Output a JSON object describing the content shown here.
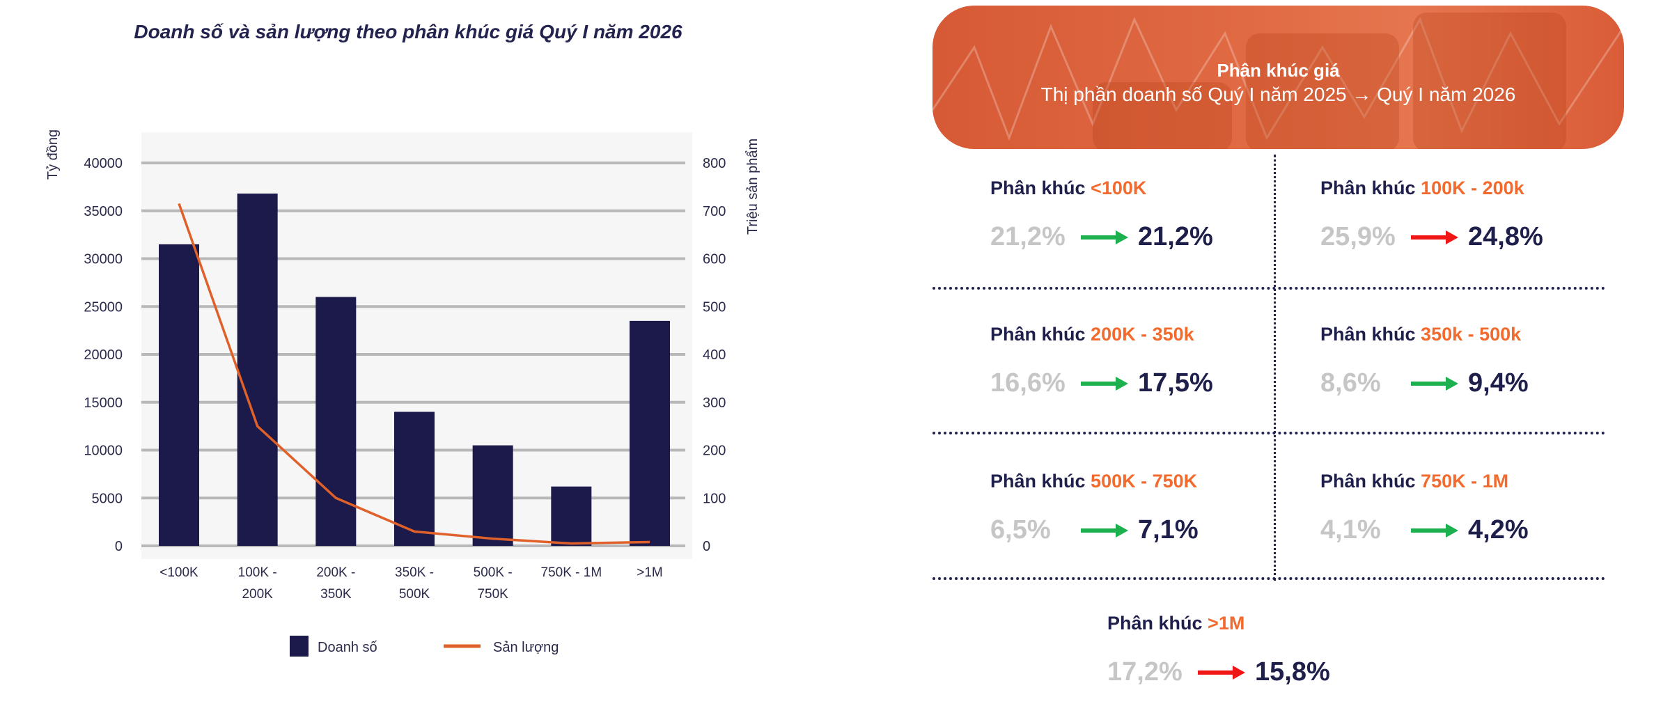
{
  "chart_data": {
    "type": "bar+line",
    "title": "Doanh số và sản lượng theo phân khúc giá Quý I năm 2026",
    "categories": [
      [
        "<100K"
      ],
      [
        "100K -",
        "200K"
      ],
      [
        "200K -",
        "350K"
      ],
      [
        "350K -",
        "500K"
      ],
      [
        "500K -",
        "750K"
      ],
      [
        "750K - 1M"
      ],
      [
        ">1M"
      ]
    ],
    "ylabel_left": "Tỷ đồng",
    "ylabel_right": "Triệu sản phẩm",
    "ylim_left": [
      0,
      40000
    ],
    "ylim_right": [
      0,
      800
    ],
    "yticks_left": [
      "0",
      "5000",
      "10000",
      "15000",
      "20000",
      "25000",
      "30000",
      "35000",
      "40000"
    ],
    "yticks_right": [
      "0",
      "100",
      "200",
      "300",
      "400",
      "500",
      "600",
      "700",
      "800"
    ],
    "grid": true,
    "legend_position": "bottom",
    "series": [
      {
        "name": "Doanh số",
        "type": "bar",
        "axis": "left",
        "color": "#1b1a4a",
        "values": [
          31500,
          36800,
          26000,
          14000,
          10500,
          6200,
          23500
        ]
      },
      {
        "name": "Sản lượng",
        "type": "line",
        "axis": "right",
        "color": "#e0602a",
        "values": [
          715,
          250,
          100,
          30,
          15,
          5,
          8
        ]
      }
    ]
  },
  "panel": {
    "title": "Phân khúc giá",
    "subtitle": "Thị phần doanh số Quý I năm 2025 → Quý I năm 2026",
    "prefix": "Phân khúc",
    "colors": {
      "accent": "#f26a2e",
      "navy": "#1e1f4b",
      "old": "#c6c6c6",
      "up": "#1db04f",
      "down": "#f01616"
    },
    "segments": [
      {
        "name": "<100K",
        "old": "21,2%",
        "new": "21,2%",
        "trend": "up"
      },
      {
        "name": "100K - 200k",
        "old": "25,9%",
        "new": "24,8%",
        "trend": "down"
      },
      {
        "name": "200K - 350k",
        "old": "16,6%",
        "new": "17,5%",
        "trend": "up"
      },
      {
        "name": "350k - 500k",
        "old": "8,6%",
        "new": "9,4%",
        "trend": "up"
      },
      {
        "name": "500K - 750K",
        "old": "6,5%",
        "new": "7,1%",
        "trend": "up"
      },
      {
        "name": "750K - 1M",
        "old": "4,1%",
        "new": "4,2%",
        "trend": "up"
      },
      {
        "name": ">1M",
        "old": "17,2%",
        "new": "15,8%",
        "trend": "down"
      }
    ]
  }
}
